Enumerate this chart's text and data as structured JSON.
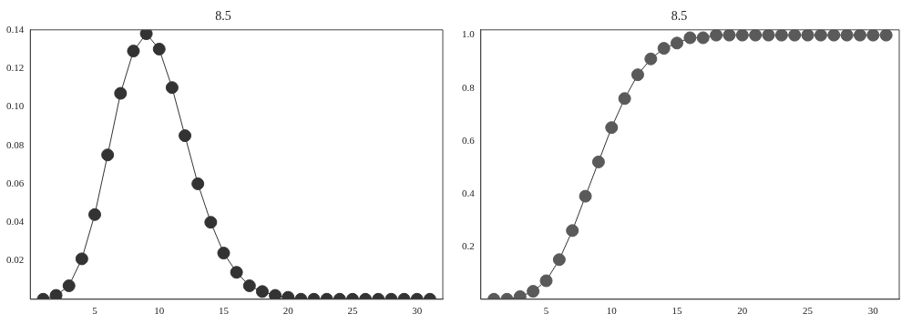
{
  "chart_data": [
    {
      "type": "line",
      "title": "8.5",
      "x": [
        1,
        2,
        3,
        4,
        5,
        6,
        7,
        8,
        9,
        10,
        11,
        12,
        13,
        14,
        15,
        16,
        17,
        18,
        19,
        20,
        21,
        22,
        23,
        24,
        25,
        26,
        27,
        28,
        29,
        30,
        31
      ],
      "series": [
        {
          "color": "#333333",
          "values": [
            0,
            0.002,
            0.007,
            0.021,
            0.044,
            0.075,
            0.107,
            0.129,
            0.138,
            0.13,
            0.11,
            0.085,
            0.06,
            0.04,
            0.024,
            0.014,
            0.007,
            0.004,
            0.002,
            0.001,
            0,
            0,
            0,
            0,
            0,
            0,
            0,
            0,
            0,
            0,
            0
          ]
        }
      ],
      "xlim": [
        0,
        32
      ],
      "xticks": [
        5,
        10,
        15,
        20,
        25,
        30
      ],
      "ylim": [
        0,
        0.14
      ],
      "yticks": [
        0.02,
        0.04,
        0.06,
        0.08,
        {
          "value": 0.1,
          "label": "0.10"
        },
        0.12,
        0.14
      ],
      "marker": "circle",
      "line_style": "solid"
    },
    {
      "type": "line",
      "title": "8.5",
      "x": [
        1,
        2,
        3,
        4,
        5,
        6,
        7,
        8,
        9,
        10,
        11,
        12,
        13,
        14,
        15,
        16,
        17,
        18,
        19,
        20,
        21,
        22,
        23,
        24,
        25,
        26,
        27,
        28,
        29,
        30,
        31
      ],
      "series": [
        {
          "color": "#5a5a5a",
          "values": [
            0,
            0,
            0.01,
            0.03,
            0.07,
            0.15,
            0.26,
            0.39,
            0.52,
            0.65,
            0.76,
            0.85,
            0.91,
            0.95,
            0.97,
            0.99,
            0.99,
            1,
            1,
            1,
            1,
            1,
            1,
            1,
            1,
            1,
            1,
            1,
            1,
            1,
            1
          ]
        }
      ],
      "xlim": [
        0,
        32
      ],
      "xticks": [
        5,
        10,
        15,
        20,
        25,
        30
      ],
      "ylim": [
        0,
        1.02
      ],
      "yticks": [
        0.2,
        0.4,
        0.6,
        0.8,
        {
          "value": 1,
          "label": "1.0"
        }
      ],
      "marker": "circle",
      "line_style": "solid"
    }
  ]
}
